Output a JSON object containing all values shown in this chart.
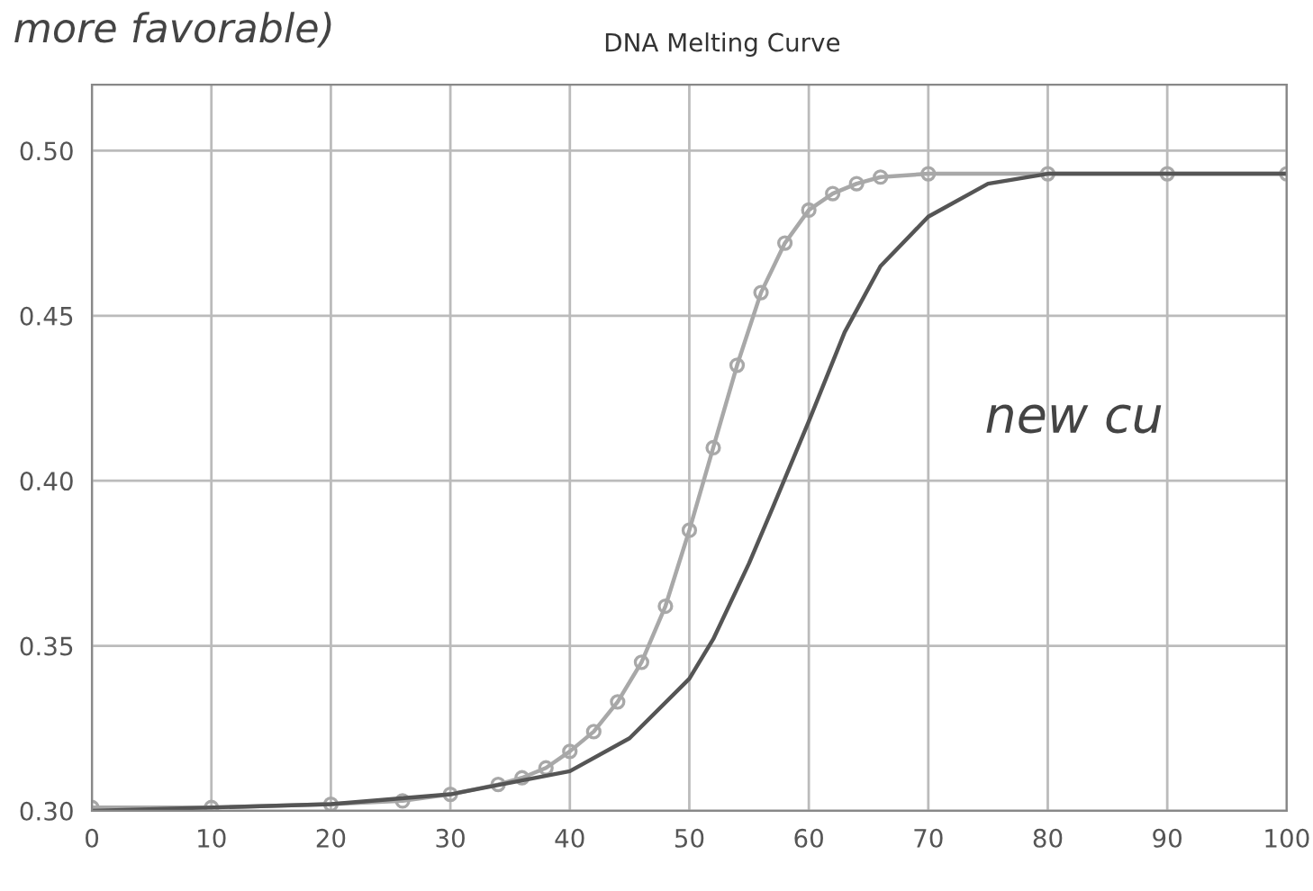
{
  "chart_data": {
    "type": "line",
    "title": "DNA Melting Curve",
    "x": [
      0,
      10,
      20,
      26,
      30,
      34,
      36,
      38,
      40,
      42,
      44,
      46,
      48,
      50,
      52,
      54,
      56,
      58,
      60,
      62,
      64,
      66,
      70,
      80,
      90,
      100
    ],
    "series": [
      {
        "color": "#a8a8a8",
        "marker": "circle",
        "values": [
          0.301,
          0.301,
          0.302,
          0.303,
          0.305,
          0.308,
          0.31,
          0.313,
          0.318,
          0.324,
          0.333,
          0.345,
          0.362,
          0.385,
          0.41,
          0.435,
          0.457,
          0.472,
          0.482,
          0.487,
          0.49,
          0.492,
          0.493,
          0.493,
          0.493,
          0.493
        ]
      },
      {
        "color": "#555555",
        "marker": "none",
        "x": [
          0,
          20,
          30,
          40,
          45,
          50,
          52,
          55,
          57,
          60,
          63,
          66,
          70,
          75,
          80,
          100
        ],
        "values": [
          0.3,
          0.302,
          0.305,
          0.312,
          0.322,
          0.34,
          0.352,
          0.375,
          0.392,
          0.418,
          0.445,
          0.465,
          0.48,
          0.49,
          0.493,
          0.493
        ]
      }
    ],
    "xlim": [
      0,
      100
    ],
    "xticks": [
      0,
      10,
      20,
      30,
      40,
      50,
      60,
      70,
      80,
      90,
      100
    ],
    "ylim": [
      0.3,
      0.52
    ],
    "yticks": [
      {
        "value": 0.3,
        "label": "0.30"
      },
      {
        "value": 0.35,
        "label": "0.35"
      },
      {
        "value": 0.4,
        "label": "0.40"
      },
      {
        "value": 0.45,
        "label": "0.45"
      },
      {
        "value": 0.5,
        "label": "0.50"
      }
    ],
    "grid": true,
    "annotations": [
      "more favorable)",
      "new cu"
    ]
  }
}
